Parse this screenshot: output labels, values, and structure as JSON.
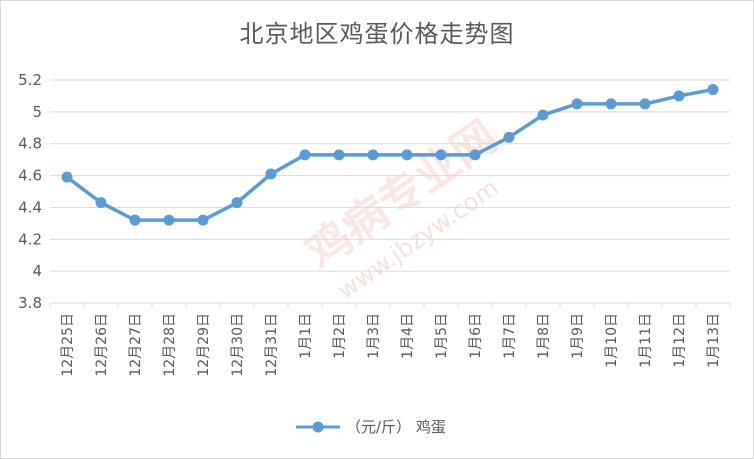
{
  "chart_data": {
    "type": "line",
    "title": "北京地区鸡蛋价格走势图",
    "categories": [
      "12月25日",
      "12月26日",
      "12月27日",
      "12月28日",
      "12月29日",
      "12月30日",
      "12月31日",
      "1月1日",
      "1月2日",
      "1月3日",
      "1月4日",
      "1月5日",
      "1月6日",
      "1月7日",
      "1月8日",
      "1月9日",
      "1月10日",
      "1月11日",
      "1月12日",
      "1月13日"
    ],
    "series": [
      {
        "name": "（元/斤） 鸡蛋",
        "values": [
          4.59,
          4.43,
          4.32,
          4.32,
          4.32,
          4.43,
          4.61,
          4.73,
          4.73,
          4.73,
          4.73,
          4.73,
          4.73,
          4.84,
          4.98,
          5.05,
          5.05,
          5.05,
          5.1,
          5.14
        ]
      }
    ],
    "ylim": [
      3.8,
      5.2
    ],
    "yticks": [
      "3.8",
      "4",
      "4.2",
      "4.4",
      "4.6",
      "4.8",
      "5",
      "5.2"
    ],
    "grid": true,
    "legend": "bottom",
    "color": "#5b9bd5",
    "watermark": {
      "main": "鸡病专业网",
      "url": "www.jbzyw.com"
    }
  }
}
